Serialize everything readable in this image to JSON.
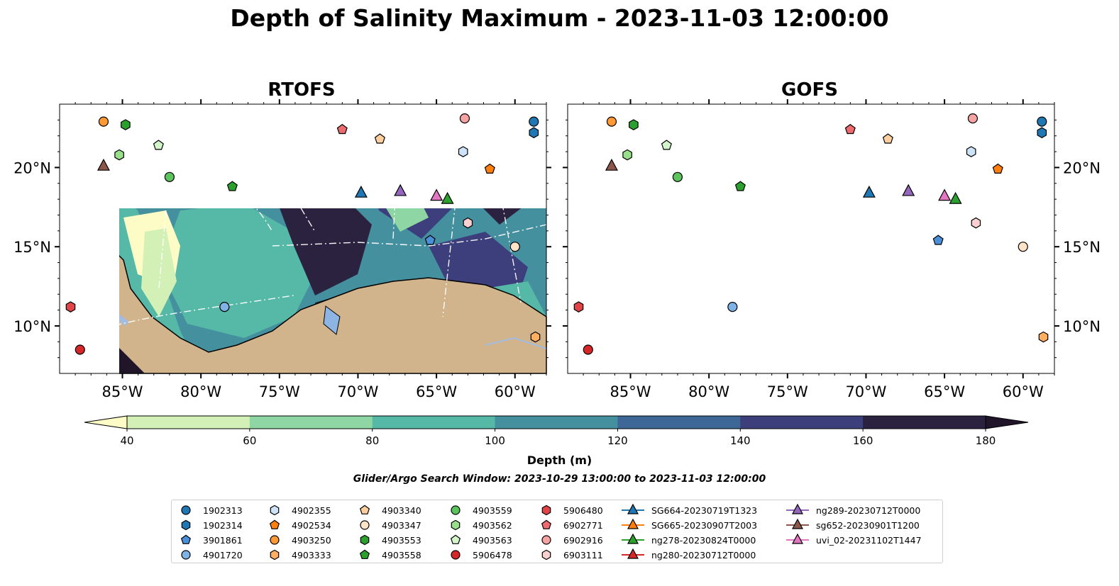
{
  "title": "Depth of Salinity Maximum - 2023-11-03 12:00:00",
  "panels": [
    {
      "id": "rtofs",
      "title": "RTOFS"
    },
    {
      "id": "gofs",
      "title": "GOFS"
    }
  ],
  "colorbar": {
    "label": "Depth (m)",
    "ticks": [
      "40",
      "60",
      "80",
      "100",
      "120",
      "140",
      "160",
      "180"
    ],
    "colors": [
      "#fefcc6",
      "#d3f0b6",
      "#8ed7a5",
      "#56b8a6",
      "#45909f",
      "#3c6797",
      "#3d3f7c",
      "#2b2240",
      "#21152a"
    ],
    "extend": "both"
  },
  "search_window": "Glider/Argo Search Window: 2023-10-29 13:00:00 to 2023-11-03 12:00:00",
  "colors": {
    "land": "#d2b48c",
    "lake": "#a3bde0",
    "ocean_shallow": "#fefcc6",
    "grid": "#ffffff"
  },
  "chart_data": {
    "type": "map",
    "title": "Depth of Salinity Maximum - 2023-11-03 12:00:00",
    "projection": "PlateCarree",
    "extent_lon": [
      -89,
      -58
    ],
    "extent_lat": [
      7,
      24
    ],
    "x_ticks": [
      "85°W",
      "80°W",
      "75°W",
      "70°W",
      "65°W",
      "60°W"
    ],
    "x_tick_values": [
      -85,
      -80,
      -75,
      -70,
      -65,
      -60
    ],
    "y_ticks": [
      "10°N",
      "15°N",
      "20°N"
    ],
    "y_tick_values": [
      10,
      15,
      20
    ],
    "colorbar": {
      "label": "Depth (m)",
      "vmin": 40,
      "vmax": 180,
      "step": 20,
      "extend": "both"
    },
    "markers": [
      {
        "label": "1902313",
        "shape": "circle",
        "color": "#1f77b4",
        "lon": -58.8,
        "lat": 22.9
      },
      {
        "label": "1902314",
        "shape": "hexagon",
        "color": "#1f77b4",
        "lon": -58.8,
        "lat": 22.2
      },
      {
        "label": "3901861",
        "shape": "pentagon",
        "color": "#4a90d9",
        "lon": -65.4,
        "lat": 15.4
      },
      {
        "label": "4901720",
        "shape": "circle",
        "color": "#7fb3e6",
        "lon": -78.5,
        "lat": 11.2
      },
      {
        "label": "4902355",
        "shape": "hexagon",
        "color": "#cde3f7",
        "lon": -63.3,
        "lat": 21.0
      },
      {
        "label": "4902534",
        "shape": "pentagon",
        "color": "#ff7f0e",
        "lon": -61.6,
        "lat": 19.9
      },
      {
        "label": "4903250",
        "shape": "circle",
        "color": "#ff9933",
        "lon": -86.2,
        "lat": 22.9
      },
      {
        "label": "4903333",
        "shape": "hexagon",
        "color": "#ffaf5f",
        "lon": -58.7,
        "lat": 9.3
      },
      {
        "label": "4903340",
        "shape": "pentagon",
        "color": "#ffcf9f",
        "lon": -68.6,
        "lat": 21.8
      },
      {
        "label": "4903347",
        "shape": "circle",
        "color": "#ffe4c8",
        "lon": -60.0,
        "lat": 15.0
      },
      {
        "label": "4903553",
        "shape": "hexagon",
        "color": "#2ca02c",
        "lon": -84.8,
        "lat": 22.7
      },
      {
        "label": "4903558",
        "shape": "pentagon",
        "color": "#2ca02c",
        "lon": -78.0,
        "lat": 18.8
      },
      {
        "label": "4903559",
        "shape": "circle",
        "color": "#5cc45c",
        "lon": -82.0,
        "lat": 19.4
      },
      {
        "label": "4903562",
        "shape": "hexagon",
        "color": "#98df8a",
        "lon": -85.2,
        "lat": 20.8
      },
      {
        "label": "4903563",
        "shape": "pentagon",
        "color": "#d4f5cc",
        "lon": -82.7,
        "lat": 21.4
      },
      {
        "label": "5906478",
        "shape": "circle",
        "color": "#d62728",
        "lon": -87.7,
        "lat": 8.5
      },
      {
        "label": "5906480",
        "shape": "hexagon",
        "color": "#e04446",
        "lon": -88.3,
        "lat": 11.2
      },
      {
        "label": "6902771",
        "shape": "pentagon",
        "color": "#eb6b6e",
        "lon": -71.0,
        "lat": 22.4
      },
      {
        "label": "6902916",
        "shape": "circle",
        "color": "#f5a3a3",
        "lon": -63.2,
        "lat": 23.1
      },
      {
        "label": "6903111",
        "shape": "hexagon",
        "color": "#fbd0d0",
        "lon": -63.0,
        "lat": 16.5
      }
    ],
    "tracks": [
      {
        "label": "SG664-20230719T1323",
        "color": "#1f77b4",
        "lon": -69.8,
        "lat": 18.4
      },
      {
        "label": "SG665-20230907T2003",
        "color": "#ff7f0e"
      },
      {
        "label": "ng278-20230824T0000",
        "color": "#2ca02c",
        "lon": -64.3,
        "lat": 18.0
      },
      {
        "label": "ng280-20230712T0000",
        "color": "#d62728"
      },
      {
        "label": "ng289-20230712T0000",
        "color": "#9467bd",
        "lon": -67.3,
        "lat": 18.5
      },
      {
        "label": "sg652-20230901T1200",
        "color": "#8c564b",
        "lon": -86.2,
        "lat": 20.1
      },
      {
        "label": "uvi_02-20231102T1447",
        "color": "#e377c2",
        "lon": -65.0,
        "lat": 18.2
      }
    ]
  }
}
